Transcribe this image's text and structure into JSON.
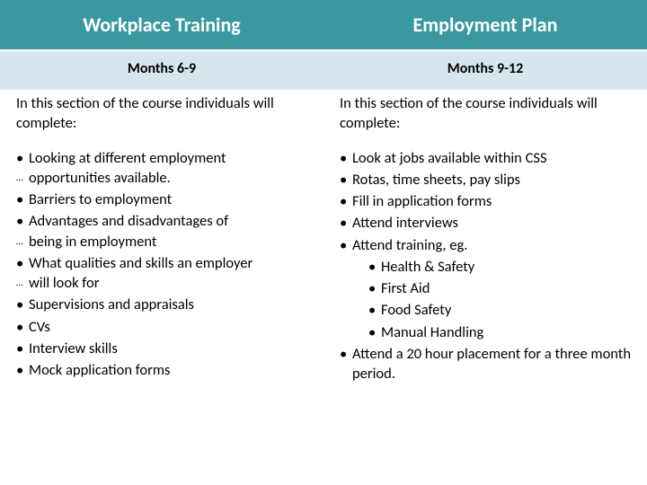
{
  "colors": {
    "header_bg": "#3a99a0",
    "header_text": "#ffffff",
    "subheader_bg": "#d4e7ed",
    "body_bg": "#ffffff",
    "text": "#000000"
  },
  "left": {
    "header": "Workplace Training",
    "subheader": "Months 6-9",
    "intro": "In this section of the course individuals will complete:",
    "bullets": [
      {
        "text": "Looking at different employment",
        "sub": false,
        "wrap": false
      },
      {
        "text": "opportunities available.",
        "sub": false,
        "wrap": true
      },
      {
        "text": "Barriers to employment",
        "sub": false,
        "wrap": false
      },
      {
        "text": "Advantages and disadvantages of",
        "sub": false,
        "wrap": false
      },
      {
        "text": "being in employment",
        "sub": false,
        "wrap": true
      },
      {
        "text": "What qualities and skills an employer",
        "sub": false,
        "wrap": false
      },
      {
        "text": "will look for",
        "sub": false,
        "wrap": true
      },
      {
        "text": "Supervisions and appraisals",
        "sub": false,
        "wrap": false
      },
      {
        "text": "CVs",
        "sub": false,
        "wrap": false
      },
      {
        "text": "Interview skills",
        "sub": false,
        "wrap": false
      },
      {
        "text": "Mock application forms",
        "sub": false,
        "wrap": false
      }
    ]
  },
  "right": {
    "header": "Employment Plan",
    "subheader": "Months 9-12",
    "intro": "In this section of the course individuals will complete:",
    "bullets": [
      {
        "text": "Look at jobs available within CSS",
        "sub": false,
        "wrap": false
      },
      {
        "text": "Rotas, time sheets, pay slips",
        "sub": false,
        "wrap": false
      },
      {
        "text": "Fill in application forms",
        "sub": false,
        "wrap": false
      },
      {
        "text": "Attend interviews",
        "sub": false,
        "wrap": false
      },
      {
        "text": "Attend training, eg.",
        "sub": false,
        "wrap": false
      },
      {
        "text": "Health & Safety",
        "sub": true,
        "wrap": false
      },
      {
        "text": "First Aid",
        "sub": true,
        "wrap": false
      },
      {
        "text": "Food Safety",
        "sub": true,
        "wrap": false
      },
      {
        "text": "Manual Handling",
        "sub": true,
        "wrap": false
      },
      {
        "text": "Attend a 20 hour placement for a three month period.",
        "sub": false,
        "wrap": false
      }
    ]
  }
}
